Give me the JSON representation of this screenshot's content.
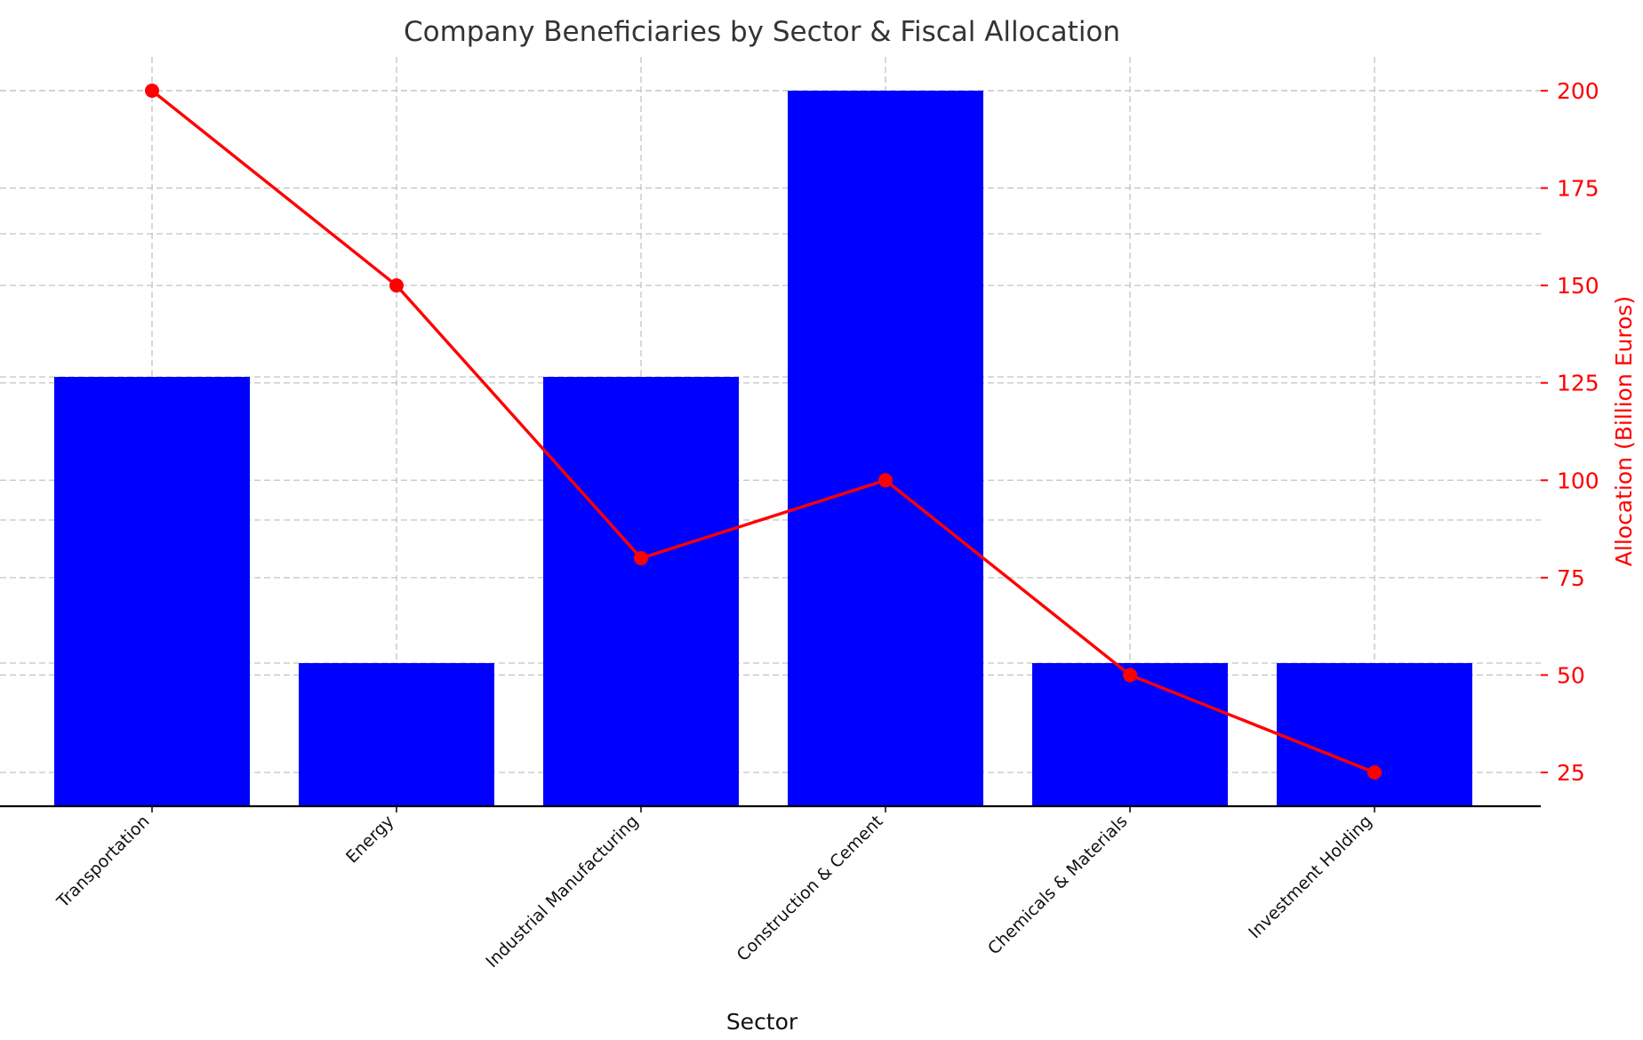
{
  "chart_data": {
    "type": "bar",
    "title": "Company Beneficiaries by Sector & Fiscal Allocation",
    "xlabel": "Sector",
    "categories": [
      "Transportation",
      "Energy",
      "Industrial Manufacturing",
      "Construction & Cement",
      "Chemicals & Materials",
      "Investment Holding"
    ],
    "bar_series": {
      "values": [
        3,
        1,
        3,
        5,
        1,
        1
      ],
      "ylim": [
        0,
        5
      ],
      "color": "#0000ff",
      "axis_visible": false
    },
    "line_series": {
      "values": [
        200,
        150,
        80,
        100,
        50,
        25
      ],
      "ylabel": "Allocation (Billion Euros)",
      "ylim": [
        16.5,
        209
      ],
      "yticks": [
        25,
        50,
        75,
        100,
        125,
        150,
        175,
        200
      ],
      "color": "#ff0000",
      "marker": "circle",
      "axis_side": "right"
    },
    "grid": true
  }
}
